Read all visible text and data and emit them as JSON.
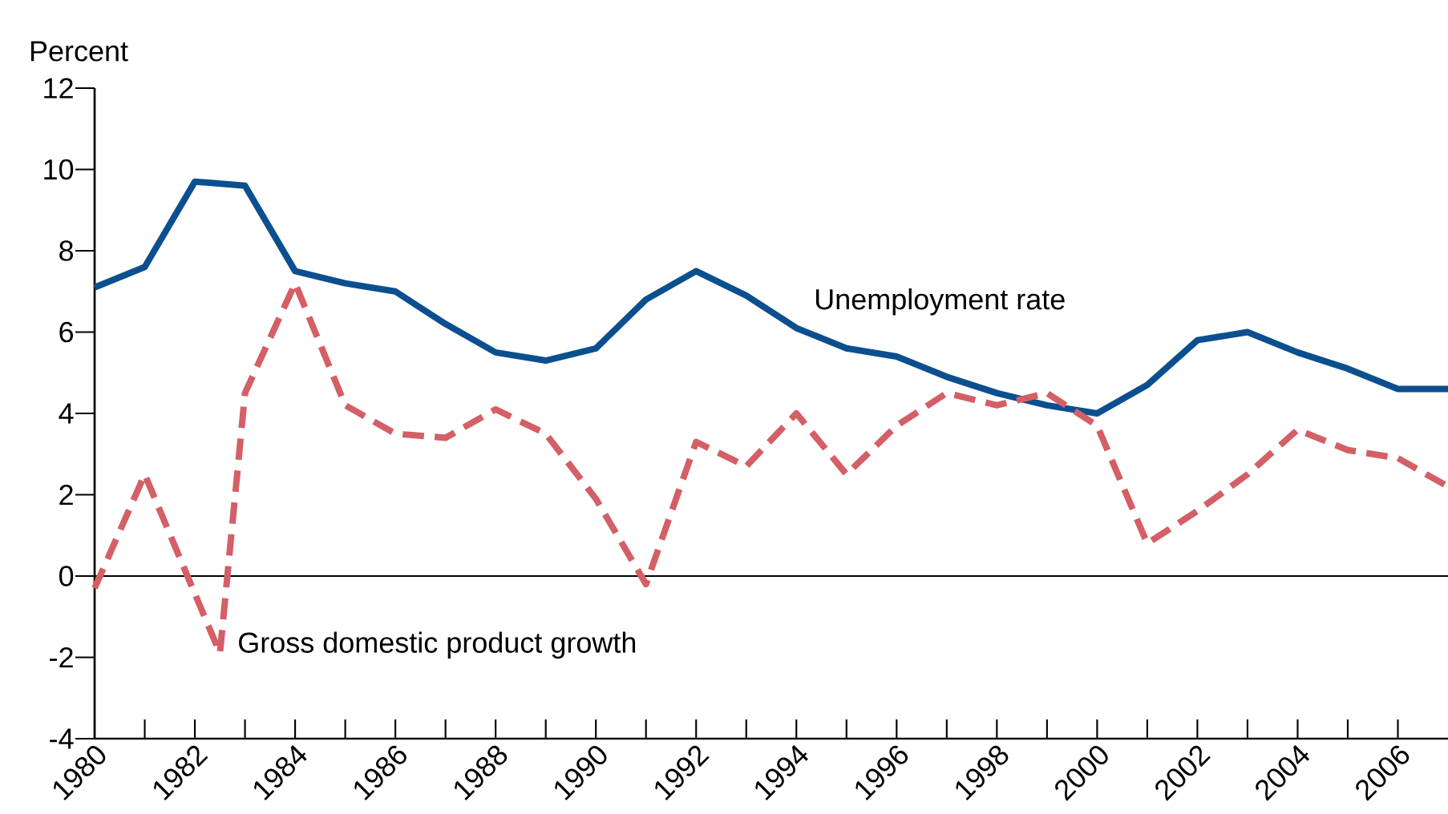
{
  "chart_data": {
    "type": "line",
    "ylabel": "Percent",
    "xlim": [
      1980,
      2007
    ],
    "ylim": [
      -4,
      12
    ],
    "yticks": [
      -4,
      -2,
      0,
      2,
      4,
      6,
      8,
      10,
      12
    ],
    "xticks": [
      1980,
      {
        "value": 1981,
        "label": null
      },
      1982,
      {
        "value": 1983,
        "label": null
      },
      1984,
      {
        "value": 1985,
        "label": null
      },
      1986,
      {
        "value": 1987,
        "label": null
      },
      1988,
      {
        "value": 1989,
        "label": null
      },
      1990,
      {
        "value": 1991,
        "label": null
      },
      1992,
      {
        "value": 1993,
        "label": null
      },
      1994,
      {
        "value": 1995,
        "label": null
      },
      1996,
      {
        "value": 1997,
        "label": null
      },
      1998,
      {
        "value": 1999,
        "label": null
      },
      2000,
      {
        "value": 2001,
        "label": null
      },
      2002,
      {
        "value": 2003,
        "label": null
      },
      2004,
      {
        "value": 2005,
        "label": null
      },
      2006
    ],
    "ref_lines": [
      {
        "axis": "y",
        "value": 0,
        "color": "#000000"
      }
    ],
    "series": [
      {
        "name": "Unemployment rate",
        "color": "#0b4f8f",
        "line_style": "solid",
        "x": [
          1980,
          1981,
          1982,
          1983,
          1984,
          1985,
          1986,
          1987,
          1988,
          1989,
          1990,
          1991,
          1992,
          1993,
          1994,
          1995,
          1996,
          1997,
          1998,
          1999,
          2000,
          2001,
          2002,
          2003,
          2004,
          2005,
          2006,
          2007
        ],
        "values": [
          7.1,
          7.6,
          9.7,
          9.6,
          7.5,
          7.2,
          7.0,
          6.2,
          5.5,
          5.3,
          5.6,
          6.8,
          7.5,
          6.9,
          6.1,
          5.6,
          5.4,
          4.9,
          4.5,
          4.2,
          4.0,
          4.7,
          5.8,
          6.0,
          5.5,
          5.1,
          4.6,
          4.6
        ]
      },
      {
        "name": "Gross domestic product growth",
        "color": "#d45f66",
        "line_style": "dashed",
        "x": [
          1980,
          1981,
          1982.5,
          1983,
          1984,
          1985,
          1986,
          1987,
          1988,
          1989,
          1990,
          1991,
          1992,
          1993,
          1994,
          1995,
          1996,
          1997,
          1998,
          1999,
          2000,
          2001,
          2002,
          2003,
          2004,
          2005,
          2006,
          2007
        ],
        "values": [
          -0.3,
          2.5,
          -1.9,
          4.5,
          7.2,
          4.2,
          3.5,
          3.4,
          4.1,
          3.5,
          1.9,
          -0.2,
          3.3,
          2.7,
          4.0,
          2.5,
          3.7,
          4.5,
          4.2,
          4.5,
          3.7,
          0.8,
          1.6,
          2.5,
          3.6,
          3.1,
          2.9,
          2.2
        ]
      }
    ]
  }
}
